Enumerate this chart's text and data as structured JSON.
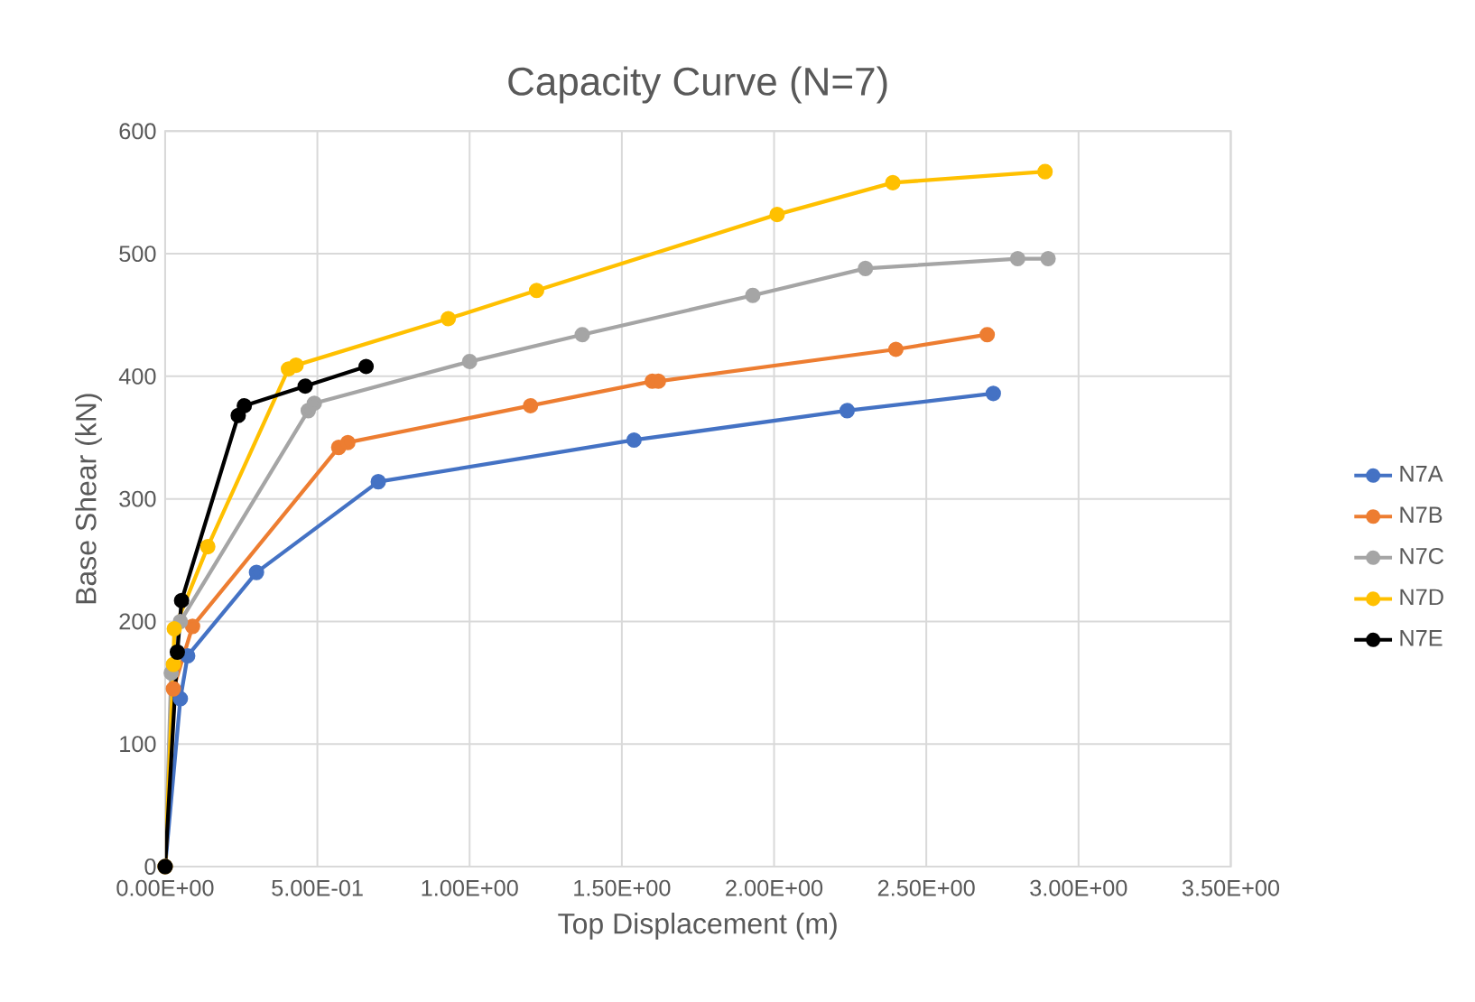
{
  "chart_data": {
    "type": "line",
    "title": "Capacity Curve (N=7)",
    "xlabel": "Top Displacement (m)",
    "ylabel": "Base Shear (kN)",
    "xlim": [
      0,
      3.5
    ],
    "ylim": [
      0,
      600
    ],
    "xticks": [
      {
        "value": 0,
        "label": "0.00E+00"
      },
      {
        "value": 0.5,
        "label": "5.00E-01"
      },
      {
        "value": 1,
        "label": "1.00E+00"
      },
      {
        "value": 1.5,
        "label": "1.50E+00"
      },
      {
        "value": 2,
        "label": "2.00E+00"
      },
      {
        "value": 2.5,
        "label": "2.50E+00"
      },
      {
        "value": 3,
        "label": "3.00E+00"
      },
      {
        "value": 3.5,
        "label": "3.50E+00"
      }
    ],
    "yticks": [
      0,
      100,
      200,
      300,
      400,
      500,
      600
    ],
    "grid": true,
    "legend": "right",
    "marker": "circle",
    "series": [
      {
        "name": "N7A",
        "color": "#4472c4",
        "x": [
          0,
          0.05,
          0.074,
          0.3,
          0.7,
          1.54,
          2.24,
          2.72
        ],
        "values": [
          0,
          137,
          172,
          240,
          314,
          348,
          372,
          386
        ]
      },
      {
        "name": "N7B",
        "color": "#ed7d31",
        "x": [
          0,
          0.027,
          0.09,
          0.57,
          0.6,
          1.2,
          1.6,
          1.62,
          2.4,
          2.7
        ],
        "values": [
          0,
          145,
          196,
          342,
          346,
          376,
          396,
          396,
          422,
          434
        ]
      },
      {
        "name": "N7C",
        "color": "#a5a5a5",
        "x": [
          0,
          0.02,
          0.05,
          0.47,
          0.49,
          1.0,
          1.37,
          1.93,
          2.3,
          2.8,
          2.9
        ],
        "values": [
          0,
          158,
          200,
          372,
          378,
          412,
          434,
          466,
          488,
          496,
          496
        ]
      },
      {
        "name": "N7D",
        "color": "#ffc000",
        "x": [
          0,
          0.027,
          0.03,
          0.14,
          0.405,
          0.43,
          0.93,
          1.22,
          2.01,
          2.39,
          2.89
        ],
        "values": [
          0,
          165,
          194,
          261,
          406,
          409,
          447,
          470,
          532,
          558,
          567
        ]
      },
      {
        "name": "N7E",
        "color": "#000000",
        "x": [
          0,
          0.04,
          0.054,
          0.24,
          0.26,
          0.46,
          0.66
        ],
        "values": [
          0,
          175,
          217,
          368,
          376,
          392,
          408
        ]
      }
    ]
  }
}
